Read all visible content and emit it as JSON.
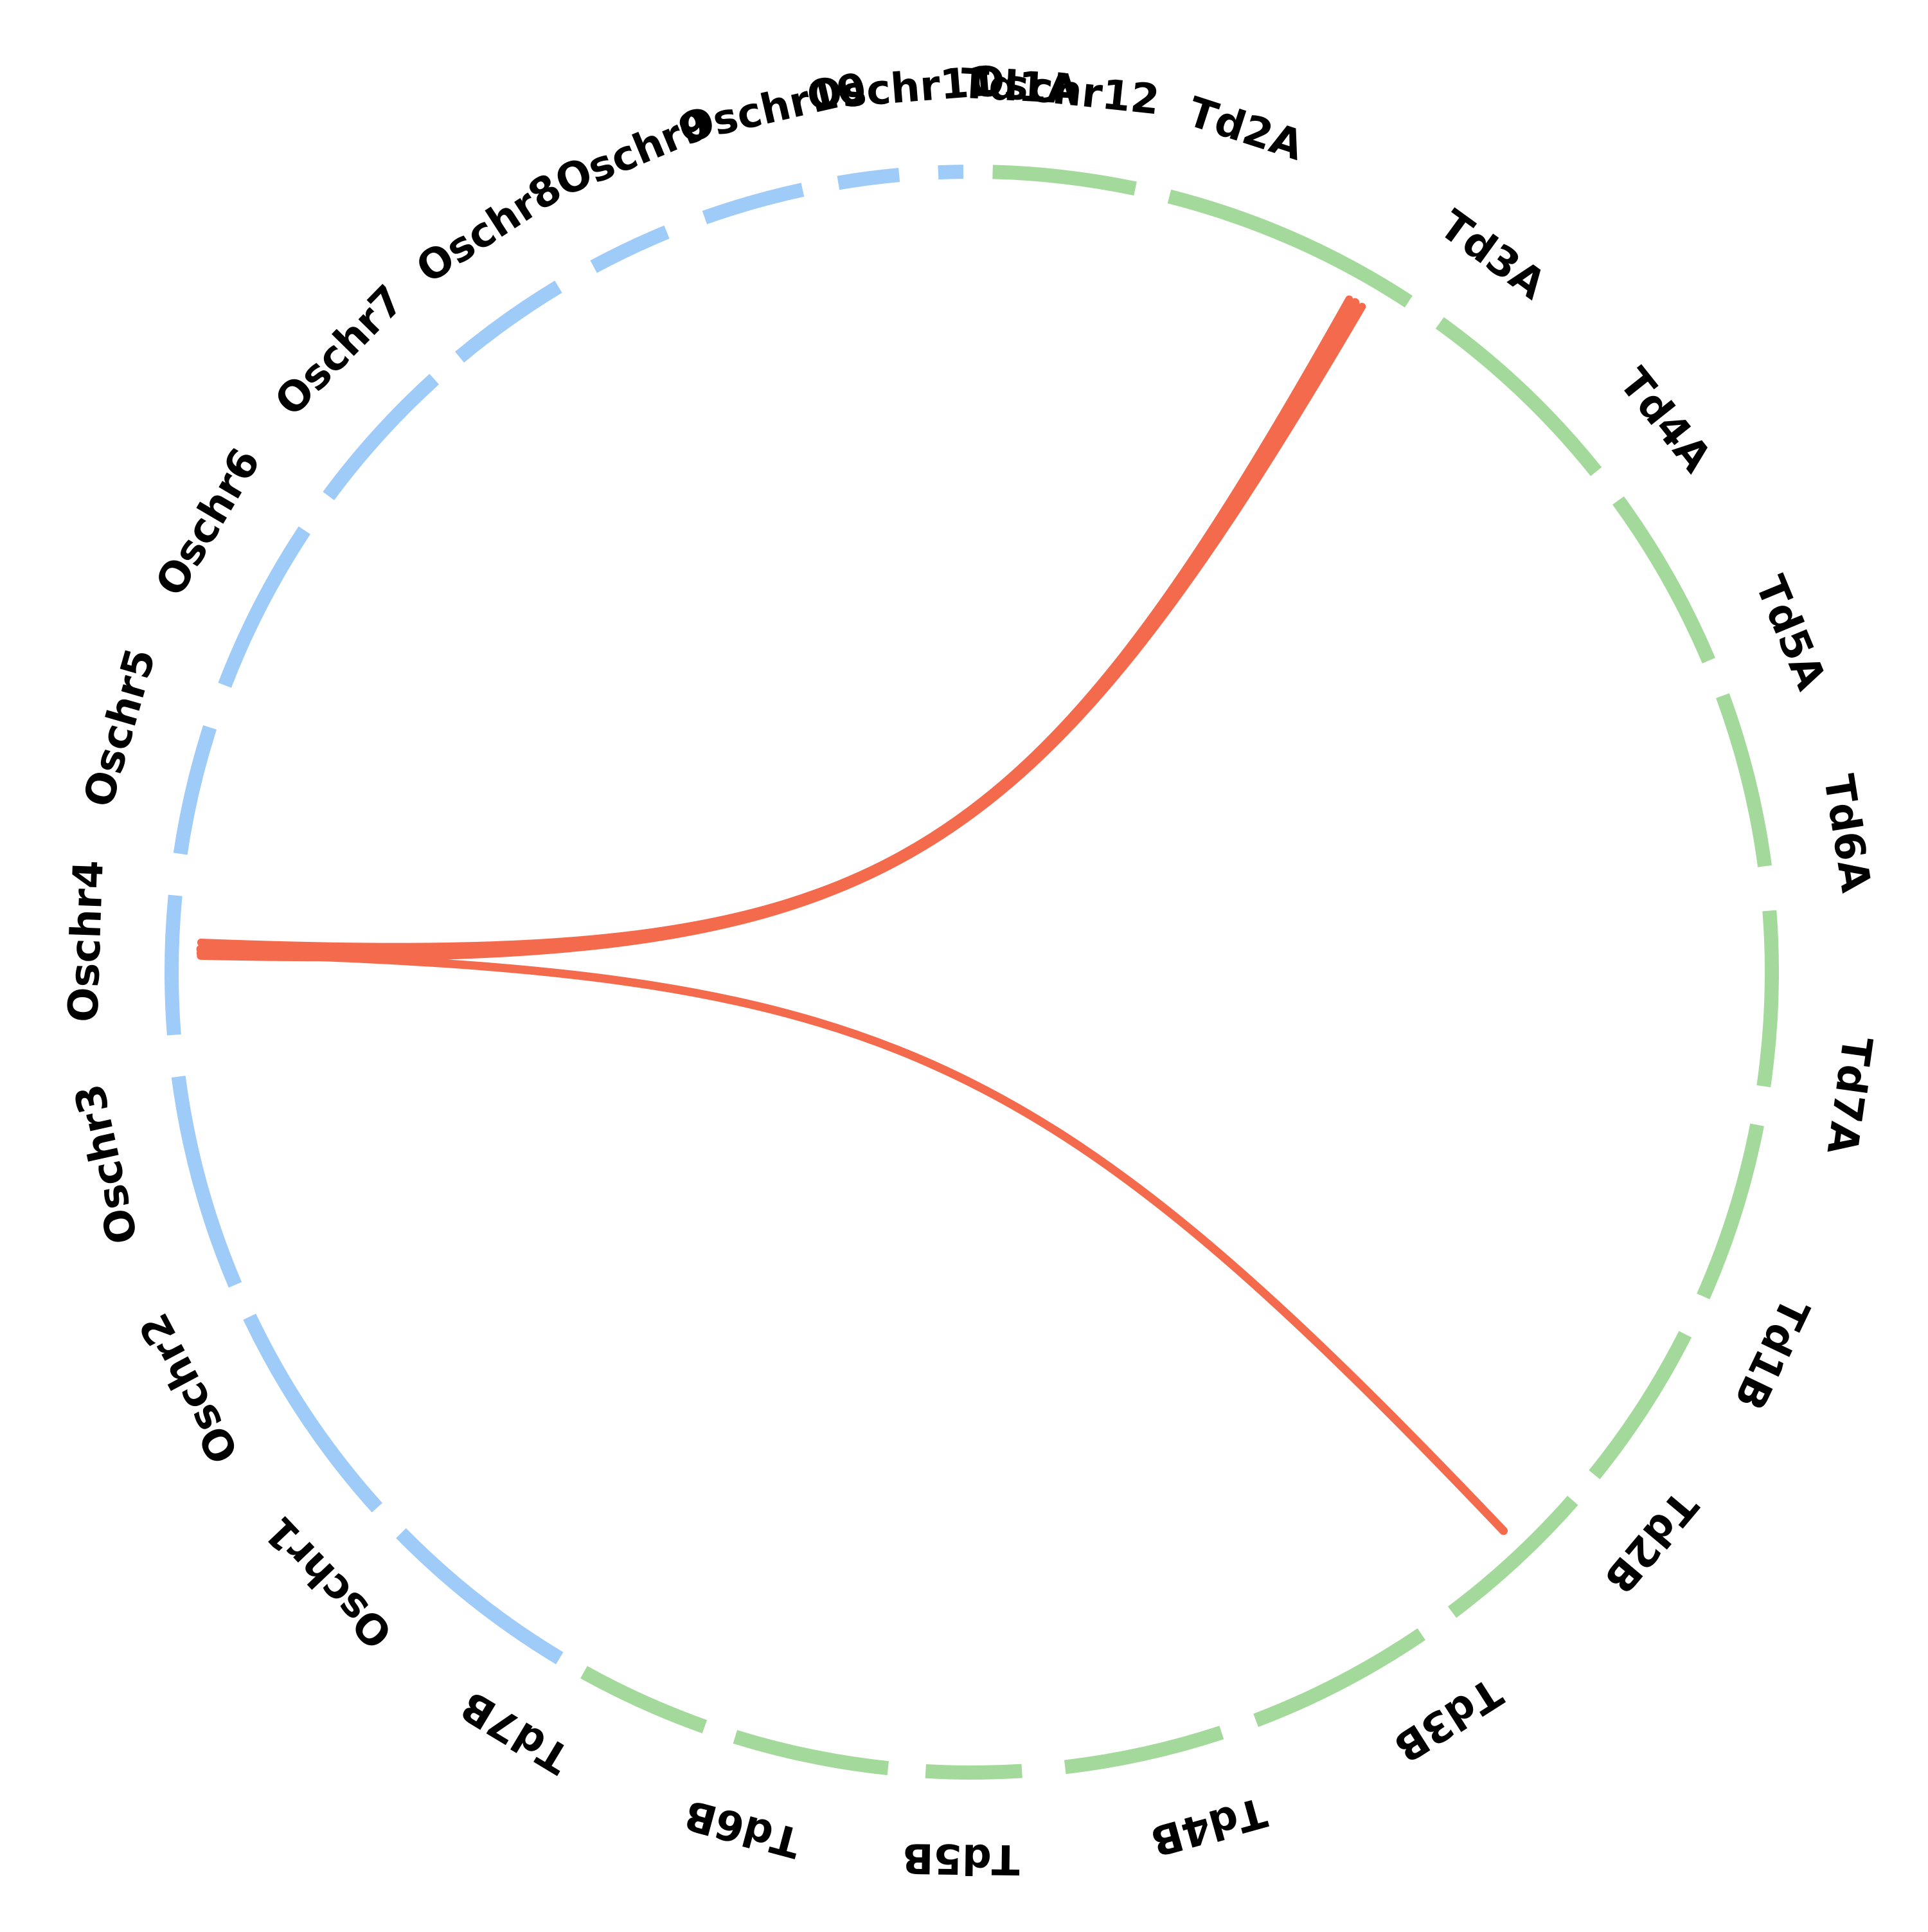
{
  "chart_data": {
    "type": "chord",
    "colors": {
      "rice": "#9ecbf7",
      "durum": "#a3d99a",
      "link": "#f46a4d"
    },
    "groups": [
      {
        "genome": "rice",
        "chromosomes": [
          "Oschr1",
          "Oschr2",
          "Oschr3",
          "Oschr4",
          "Oschr5",
          "Oschr6",
          "Oschr7",
          "Oschr8",
          "Oschr9",
          "Oschr10",
          "Oschr11",
          "Oschr12"
        ]
      },
      {
        "genome": "durum",
        "chromosomes": [
          "Td1A",
          "Td2A",
          "Td3A",
          "Td4A",
          "Td5A",
          "Td6A",
          "Td7A",
          "Td1B",
          "Td2B",
          "Td3B",
          "Td4B",
          "Td5B",
          "Td6B",
          "Td7B"
        ]
      }
    ],
    "links": [
      {
        "source": "Oschr4",
        "target": "Td2A"
      },
      {
        "source": "Oschr4",
        "target": "Td2A"
      },
      {
        "source": "Oschr4",
        "target": "Td2A"
      },
      {
        "source": "Oschr4",
        "target": "Td2B"
      }
    ]
  }
}
